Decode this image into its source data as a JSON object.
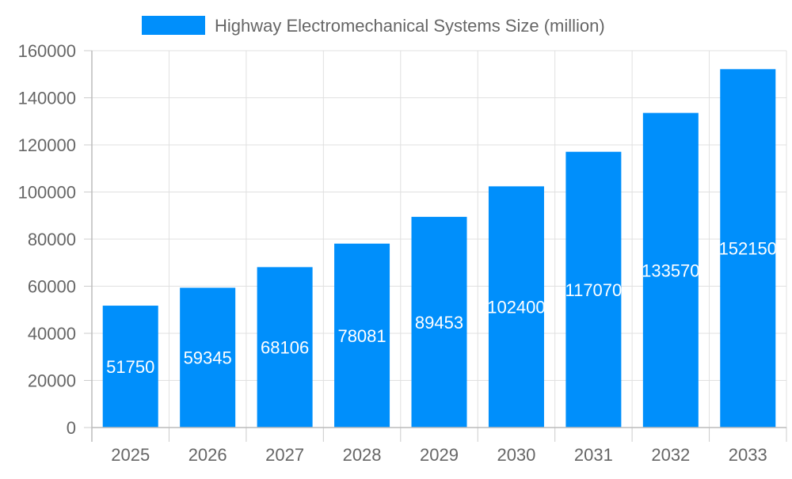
{
  "chart_data": {
    "type": "bar",
    "legend": {
      "label": "Highway Electromechanical Systems Size (million)",
      "position": "top",
      "color": "#008ffb"
    },
    "categories": [
      "2025",
      "2026",
      "2027",
      "2028",
      "2029",
      "2030",
      "2031",
      "2032",
      "2033"
    ],
    "series": [
      {
        "name": "Highway Electromechanical Systems Size (million)",
        "values": [
          51750,
          59345,
          68106,
          78081,
          89453,
          102400,
          117070,
          133570,
          152150
        ]
      }
    ],
    "ylim": [
      0,
      160000
    ],
    "yticks": [
      0,
      20000,
      40000,
      60000,
      80000,
      100000,
      120000,
      140000,
      160000
    ],
    "grid": true,
    "data_labels": true,
    "bar_color": "#008ffb"
  }
}
